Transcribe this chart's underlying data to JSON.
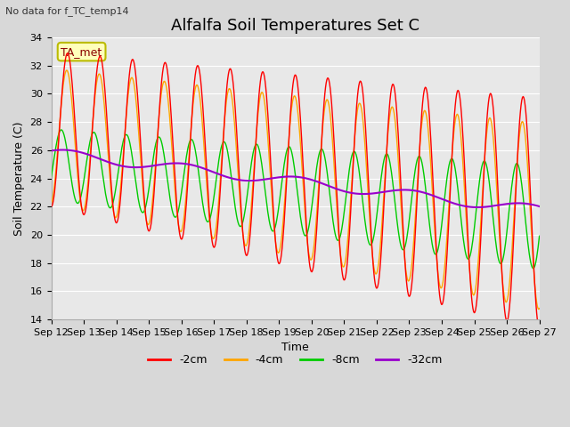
{
  "title": "Alfalfa Soil Temperatures Set C",
  "xlabel": "Time",
  "ylabel": "Soil Temperature (C)",
  "top_left_note": "No data for f_TC_temp14",
  "annotation_box": "TA_met",
  "ylim": [
    14,
    34
  ],
  "yticks": [
    14,
    16,
    18,
    20,
    22,
    24,
    26,
    28,
    30,
    32,
    34
  ],
  "x_tick_labels": [
    "Sep 12",
    "Sep 13",
    "Sep 14",
    "Sep 15",
    "Sep 16",
    "Sep 17",
    "Sep 18",
    "Sep 19",
    "Sep 20",
    "Sep 21",
    "Sep 22",
    "Sep 23",
    "Sep 24",
    "Sep 25",
    "Sep 26",
    "Sep 27"
  ],
  "colors": {
    "2cm": "#ff0000",
    "4cm": "#ffa500",
    "8cm": "#00cc00",
    "32cm": "#9900cc"
  },
  "legend_labels": [
    "-2cm",
    "-4cm",
    "-8cm",
    "-32cm"
  ],
  "fig_bg": "#d8d8d8",
  "axes_bg": "#e8e8e8",
  "title_fontsize": 13,
  "label_fontsize": 9,
  "tick_fontsize": 8,
  "note_fontsize": 8,
  "grid_color": "#ffffff",
  "n_days": 15,
  "n_pts": 720
}
